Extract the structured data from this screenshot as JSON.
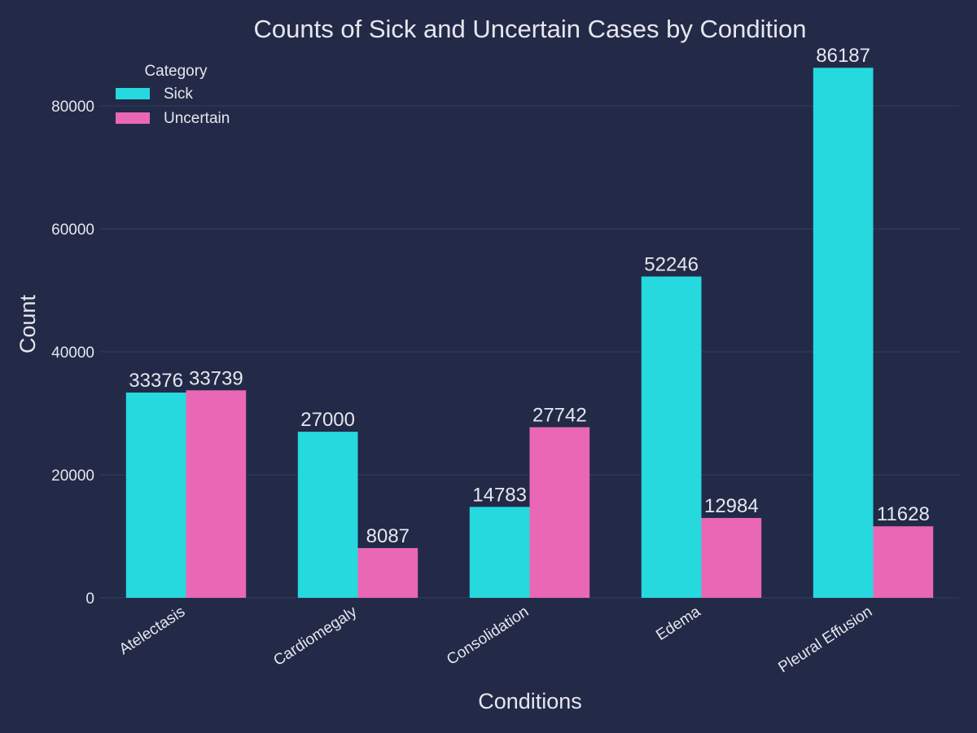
{
  "chart_data": {
    "type": "bar",
    "title": "Counts of Sick and Uncertain Cases by Condition",
    "xlabel": "Conditions",
    "ylabel": "Count",
    "categories": [
      "Atelectasis",
      "Cardiomegaly",
      "Consolidation",
      "Edema",
      "Pleural Effusion"
    ],
    "series": [
      {
        "name": "Sick",
        "color": "#26d9df",
        "values": [
          33376,
          27000,
          14783,
          52246,
          86187
        ]
      },
      {
        "name": "Uncertain",
        "color": "#e967b5",
        "values": [
          33739,
          8087,
          27742,
          12984,
          11628
        ]
      }
    ],
    "ylim": [
      0,
      89000
    ],
    "yticks": [
      0,
      20000,
      40000,
      60000,
      80000
    ],
    "grid": true,
    "legend": {
      "title": "Category",
      "placement": "top-left"
    },
    "colors": {
      "background": "#222a47",
      "grid": "#2f3a5e",
      "text": "#e6e6ee"
    }
  }
}
